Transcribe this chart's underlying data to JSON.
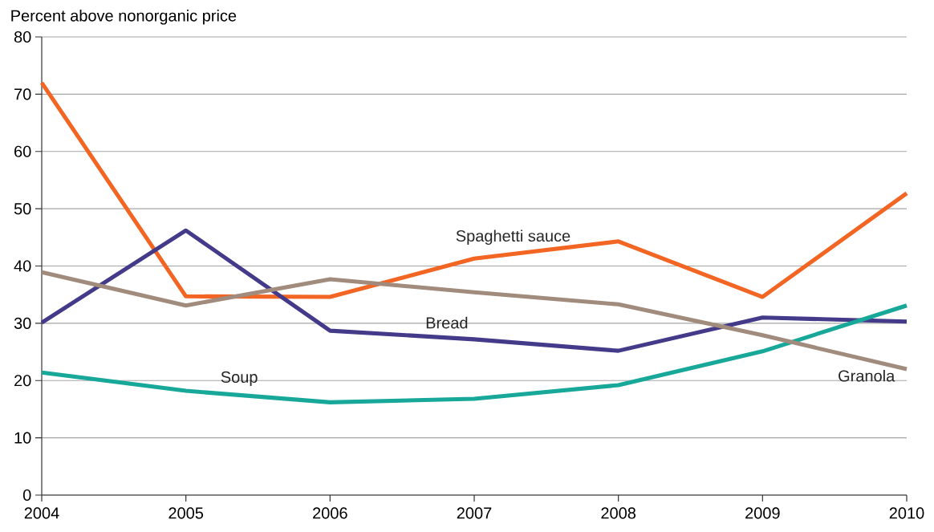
{
  "chart_data": {
    "type": "line",
    "ylabel": "Percent above nonorganic price",
    "x": [
      2004,
      2005,
      2006,
      2007,
      2008,
      2009,
      2010
    ],
    "series": [
      {
        "name": "Spaghetti sauce",
        "color": "#f26522",
        "values": [
          72.0,
          34.7,
          34.6,
          41.3,
          44.3,
          34.6,
          52.7
        ]
      },
      {
        "name": "Bread",
        "color": "#433a8a",
        "values": [
          30.1,
          46.2,
          28.7,
          27.2,
          25.2,
          31.0,
          30.3
        ]
      },
      {
        "name": "Soup",
        "color": "#17a89a",
        "values": [
          21.4,
          18.2,
          16.2,
          16.8,
          19.2,
          25.1,
          33.1
        ]
      },
      {
        "name": "Granola",
        "color": "#a08b7c",
        "values": [
          38.9,
          33.1,
          37.7,
          35.4,
          33.3,
          27.9,
          22.0
        ]
      }
    ],
    "xlim": [
      2004,
      2010
    ],
    "ylim": [
      0,
      80
    ],
    "xticks": [
      2004,
      2005,
      2006,
      2007,
      2008,
      2009,
      2010
    ],
    "yticks": [
      0,
      10,
      20,
      30,
      40,
      50,
      60,
      70,
      80
    ],
    "grid": "y",
    "marker": "none",
    "line_style": "solid"
  }
}
